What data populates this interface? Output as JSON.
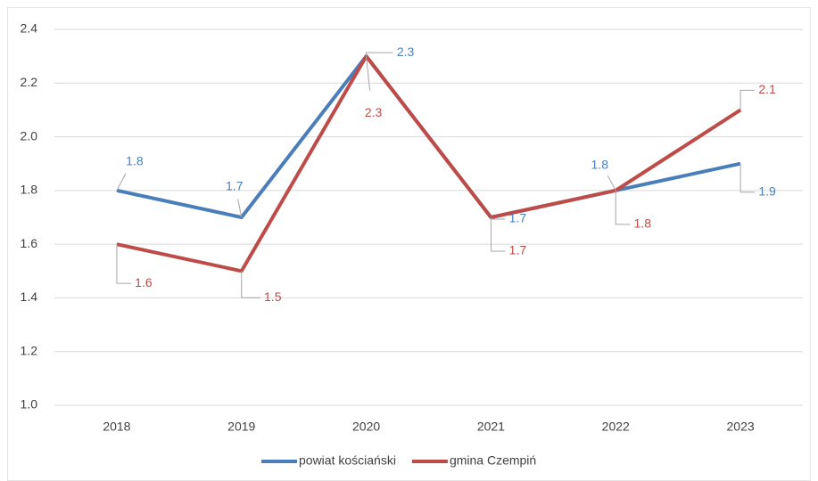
{
  "chart_data": {
    "type": "line",
    "categories": [
      "2018",
      "2019",
      "2020",
      "2021",
      "2022",
      "2023"
    ],
    "series": [
      {
        "name": "powiat kościański",
        "color": "#4a7ebb",
        "values": [
          1.8,
          1.7,
          2.3,
          1.7,
          1.8,
          1.9
        ]
      },
      {
        "name": "gmina Czempiń",
        "color": "#be4b48",
        "values": [
          1.6,
          1.5,
          2.3,
          1.7,
          1.8,
          2.1
        ]
      }
    ],
    "ylim": [
      1.0,
      2.4
    ],
    "yticks": [
      {
        "value": 1.0,
        "label": "1.0"
      },
      1.2,
      1.4,
      1.6,
      1.8,
      {
        "value": 2.0,
        "label": "2.0"
      },
      2.2,
      2.4
    ],
    "grid": true,
    "legend": "bottom"
  }
}
